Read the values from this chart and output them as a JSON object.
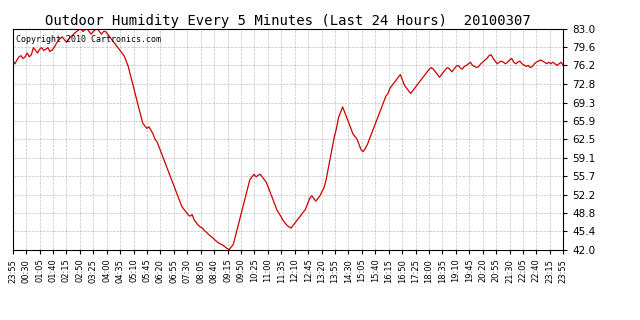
{
  "title": "Outdoor Humidity Every 5 Minutes (Last 24 Hours)  20100307",
  "copyright_text": "Copyright 2010 Cartronics.com",
  "line_color": "#cc0000",
  "background_color": "#ffffff",
  "plot_bg_color": "#ffffff",
  "grid_color": "#b0b0b0",
  "ylim": [
    42.0,
    83.0
  ],
  "yticks": [
    42.0,
    45.4,
    48.8,
    52.2,
    55.7,
    59.1,
    62.5,
    65.9,
    69.3,
    72.8,
    76.2,
    79.6,
    83.0
  ],
  "xtick_labels": [
    "23:55",
    "00:30",
    "01:05",
    "01:40",
    "02:15",
    "02:50",
    "03:25",
    "04:00",
    "04:35",
    "05:10",
    "05:45",
    "06:20",
    "06:55",
    "07:30",
    "08:05",
    "08:40",
    "09:15",
    "09:50",
    "10:25",
    "11:00",
    "11:35",
    "12:10",
    "12:45",
    "13:20",
    "13:55",
    "14:30",
    "15:05",
    "15:40",
    "16:15",
    "16:50",
    "17:25",
    "18:00",
    "18:35",
    "19:10",
    "19:45",
    "20:20",
    "20:55",
    "21:30",
    "22:05",
    "22:40",
    "23:15",
    "23:55"
  ],
  "humidity_data": [
    77.0,
    76.5,
    77.2,
    77.8,
    78.0,
    77.5,
    77.8,
    78.5,
    77.8,
    78.2,
    79.5,
    79.0,
    78.5,
    79.2,
    79.5,
    79.0,
    79.2,
    79.5,
    78.8,
    79.0,
    79.5,
    80.2,
    80.8,
    81.2,
    81.5,
    81.0,
    80.5,
    81.0,
    81.5,
    81.8,
    82.2,
    82.5,
    82.8,
    83.0,
    82.5,
    82.8,
    83.0,
    82.5,
    82.0,
    82.5,
    82.8,
    83.0,
    82.5,
    82.0,
    82.5,
    82.5,
    82.0,
    81.5,
    81.0,
    80.5,
    80.0,
    79.5,
    79.0,
    78.5,
    78.0,
    77.0,
    76.0,
    74.5,
    73.0,
    71.5,
    70.0,
    68.5,
    67.0,
    65.5,
    65.0,
    64.5,
    64.8,
    64.2,
    63.5,
    62.5,
    62.0,
    61.0,
    60.0,
    59.0,
    58.0,
    57.0,
    56.0,
    55.0,
    54.0,
    53.0,
    52.0,
    51.0,
    50.0,
    49.5,
    49.0,
    48.5,
    48.2,
    48.5,
    47.5,
    47.0,
    46.5,
    46.2,
    46.0,
    45.5,
    45.2,
    44.8,
    44.5,
    44.2,
    43.8,
    43.5,
    43.2,
    43.0,
    42.8,
    42.5,
    42.2,
    42.0,
    42.5,
    43.0,
    44.5,
    46.0,
    47.5,
    49.0,
    50.5,
    52.0,
    53.5,
    55.0,
    55.5,
    56.0,
    55.5,
    55.8,
    56.0,
    55.5,
    55.0,
    54.5,
    53.5,
    52.5,
    51.5,
    50.5,
    49.5,
    48.8,
    48.2,
    47.5,
    47.0,
    46.5,
    46.2,
    46.0,
    46.5,
    47.0,
    47.5,
    48.0,
    48.5,
    49.0,
    49.5,
    50.5,
    51.5,
    52.0,
    51.5,
    51.0,
    51.5,
    52.0,
    52.8,
    53.5,
    55.0,
    57.0,
    59.0,
    61.0,
    63.0,
    64.5,
    66.5,
    67.5,
    68.5,
    67.5,
    66.5,
    65.5,
    64.5,
    63.5,
    63.0,
    62.5,
    61.5,
    60.5,
    60.2,
    60.8,
    61.5,
    62.5,
    63.5,
    64.5,
    65.5,
    66.5,
    67.5,
    68.5,
    69.5,
    70.5,
    71.0,
    72.0,
    72.5,
    73.0,
    73.5,
    74.0,
    74.5,
    73.5,
    72.5,
    72.0,
    71.5,
    71.0,
    71.5,
    72.0,
    72.5,
    73.0,
    73.5,
    74.0,
    74.5,
    75.0,
    75.5,
    75.8,
    75.5,
    75.0,
    74.5,
    74.0,
    74.5,
    75.0,
    75.5,
    75.8,
    75.5,
    75.0,
    75.5,
    76.0,
    76.2,
    75.8,
    75.5,
    76.0,
    76.2,
    76.5,
    76.8,
    76.2,
    76.0,
    75.8,
    76.0,
    76.5,
    76.8,
    77.2,
    77.5,
    78.0,
    78.2,
    77.5,
    77.0,
    76.5,
    76.8,
    77.0,
    76.8,
    76.5,
    76.8,
    77.2,
    77.5,
    76.8,
    76.5,
    76.8,
    77.0,
    76.5,
    76.3,
    76.0,
    76.2,
    75.8,
    76.0,
    76.5,
    76.8,
    77.0,
    77.2,
    77.0,
    76.8,
    76.5,
    76.8,
    76.5,
    76.8,
    76.5,
    76.2,
    76.5,
    76.8,
    76.2
  ]
}
